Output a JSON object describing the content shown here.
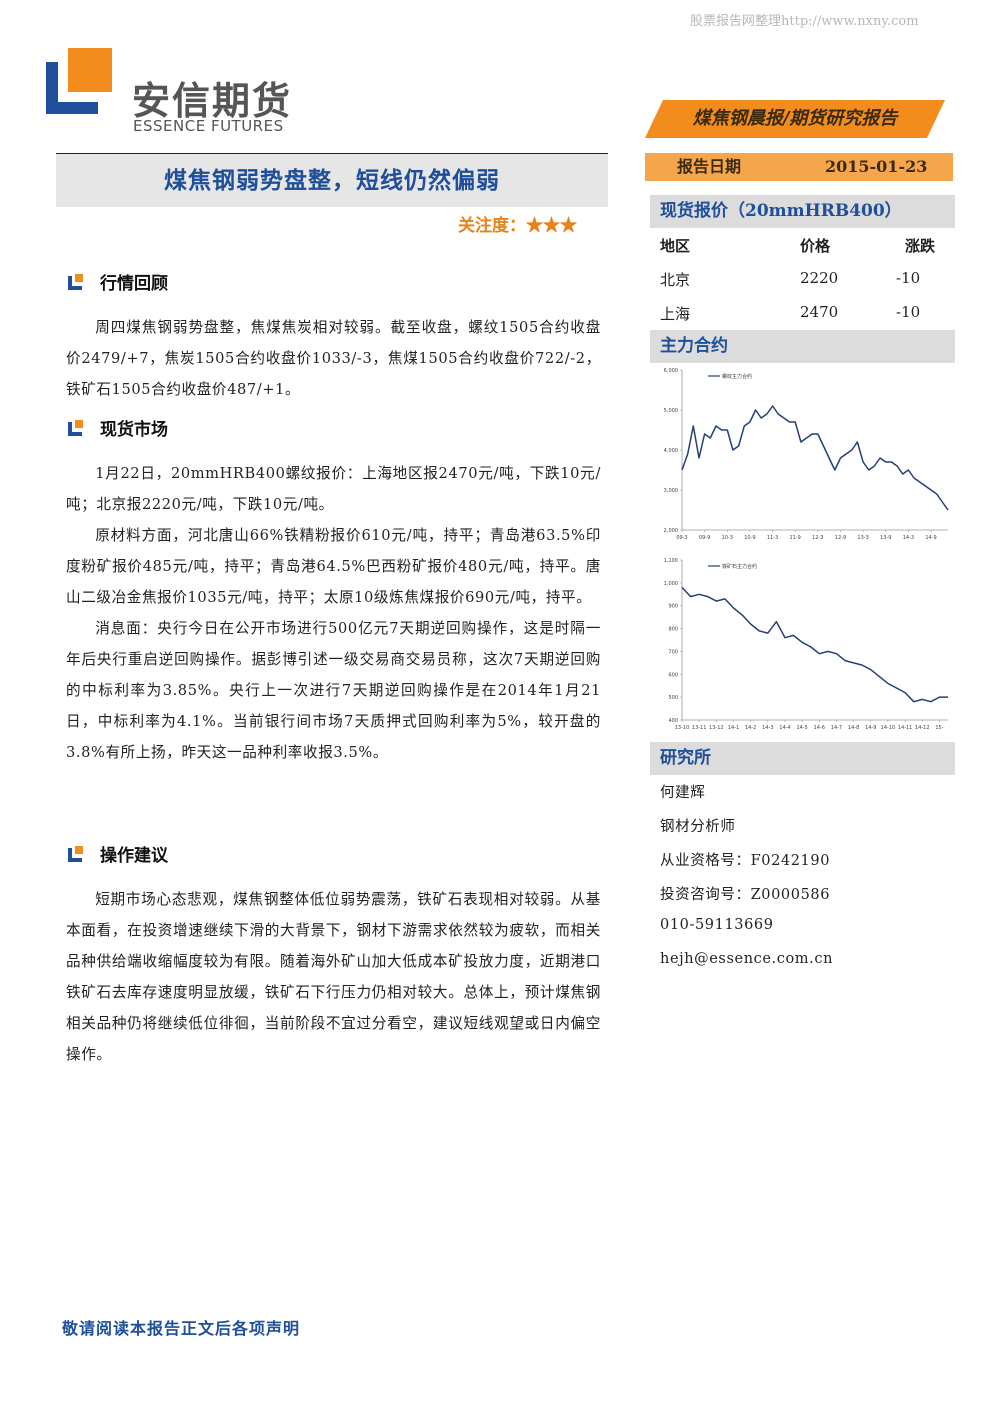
{
  "watermark": "股票报告网整理http://www.nxny.com",
  "header": {
    "logo_cn": "安信期货",
    "logo_en": "ESSENCE FUTURES",
    "banner": "煤焦钢晨报/期货研究报告",
    "date_label": "报告日期",
    "date": "2015-01-23"
  },
  "title": "煤焦钢弱势盘整，短线仍然偏弱",
  "attention": {
    "label": "关注度：",
    "stars": "★★★"
  },
  "sections": [
    {
      "heading": "行情回顾",
      "paragraphs": [
        "周四煤焦钢弱势盘整，焦煤焦炭相对较弱。截至收盘，螺纹1505合约收盘价2479/+7，焦炭1505合约收盘价1033/-3，焦煤1505合约收盘价722/-2，铁矿石1505合约收盘价487/+1。"
      ]
    },
    {
      "heading": "现货市场",
      "paragraphs": [
        "1月22日，20mmHRB400螺纹报价：上海地区报2470元/吨，下跌10元/吨；北京报2220元/吨，下跌10元/吨。",
        "原材料方面，河北唐山66%铁精粉报价610元/吨，持平；青岛港63.5%印度粉矿报价485元/吨，持平；青岛港64.5%巴西粉矿报价480元/吨，持平。唐山二级冶金焦报价1035元/吨，持平；太原10级炼焦煤报价690元/吨，持平。",
        "消息面：央行今日在公开市场进行500亿元7天期逆回购操作，这是时隔一年后央行重启逆回购操作。据彭博引述一级交易商交易员称，这次7天期逆回购的中标利率为3.85%。央行上一次进行7天期逆回购操作是在2014年1月21日，中标利率为4.1%。当前银行间市场7天质押式回购利率为5%，较开盘的3.8%有所上扬，昨天这一品种利率收报3.5%。"
      ]
    },
    {
      "heading": "操作建议",
      "paragraphs": [
        "短期市场心态悲观，煤焦钢整体低位弱势震荡，铁矿石表现相对较弱。从基本面看，在投资增速继续下滑的大背景下，钢材下游需求依然较为疲软，而相关品种供给端收缩幅度较为有限。随着海外矿山加大低成本矿投放力度，近期港口铁矿石去库存速度明显放缓，铁矿石下行压力仍相对较大。总体上，预计煤焦钢相关品种仍将继续低位徘徊，当前阶段不宜过分看空，建议短线观望或日内偏空操作。"
      ]
    }
  ],
  "spot": {
    "title": "现货报价（20mmHRB400）",
    "columns": [
      "地区",
      "价格",
      "涨跌"
    ],
    "rows": [
      [
        "北京",
        2220,
        -10
      ],
      [
        "上海",
        2470,
        -10
      ]
    ]
  },
  "contracts_title": "主力合约",
  "chart_data": [
    {
      "type": "line",
      "categories": [
        "09-3",
        null,
        null,
        null,
        "09-9",
        null,
        null,
        null,
        "10-3",
        null,
        null,
        null,
        "10-9",
        null,
        null,
        null,
        "11-3",
        null,
        null,
        null,
        "11-9",
        null,
        null,
        null,
        "12-3",
        null,
        null,
        null,
        "12-9",
        null,
        null,
        null,
        "13-3",
        null,
        null,
        null,
        "13-9",
        null,
        null,
        null,
        "14-3",
        null,
        null,
        null,
        "14-9",
        null,
        null,
        null
      ],
      "series": [
        {
          "name": "螺纹主力合约",
          "color": "#243f7a",
          "values": [
            3500,
            3900,
            4600,
            3800,
            4400,
            4300,
            4600,
            4500,
            4500,
            4000,
            4100,
            4600,
            4700,
            5000,
            4800,
            4900,
            5100,
            4900,
            4800,
            4700,
            4700,
            4200,
            4300,
            4400,
            4400,
            4100,
            3800,
            3500,
            3800,
            3900,
            4000,
            4200,
            3700,
            3500,
            3600,
            3800,
            3700,
            3700,
            3600,
            3400,
            3500,
            3300,
            3200,
            3100,
            3000,
            2900,
            2700,
            2500
          ]
        }
      ],
      "ylim": [
        2000,
        6000
      ],
      "yticks": [
        {
          "value": 2000,
          "label": "2,000"
        },
        {
          "value": 3000,
          "label": "3,000"
        },
        {
          "value": 4000,
          "label": "4,000"
        },
        {
          "value": 5000,
          "label": "5,000"
        },
        {
          "value": 6000,
          "label": "6,000"
        }
      ]
    },
    {
      "type": "line",
      "categories": [
        "13-10",
        null,
        "13-11",
        null,
        "13-12",
        null,
        "14-1",
        null,
        "14-2",
        null,
        "14-3",
        null,
        "14-4",
        null,
        "14-5",
        null,
        "14-6",
        null,
        "14-7",
        null,
        "14-8",
        null,
        "14-9",
        null,
        "14-10",
        null,
        "14-11",
        null,
        "14-12",
        null,
        "15-",
        null
      ],
      "series": [
        {
          "name": "铁矿石主力合约",
          "color": "#243f7a",
          "values": [
            980,
            940,
            950,
            940,
            920,
            930,
            890,
            860,
            820,
            790,
            780,
            830,
            760,
            770,
            740,
            720,
            690,
            700,
            690,
            660,
            650,
            640,
            620,
            590,
            560,
            540,
            520,
            480,
            490,
            480,
            500,
            500
          ]
        }
      ],
      "ylim": [
        400,
        1100
      ],
      "yticks": [
        400,
        500,
        600,
        700,
        800,
        900,
        {
          "value": 1000,
          "label": "1,000"
        },
        {
          "value": 1100,
          "label": "1,100"
        }
      ]
    }
  ],
  "research": {
    "title": "研究所",
    "lines": [
      "何建辉",
      "钢材分析师",
      "从业资格号：F0242190",
      "投资咨询号：Z0000586",
      "010-59113669",
      "hejh@essence.com.cn"
    ]
  },
  "footer": "敬请阅读本报告正文后各项声明"
}
